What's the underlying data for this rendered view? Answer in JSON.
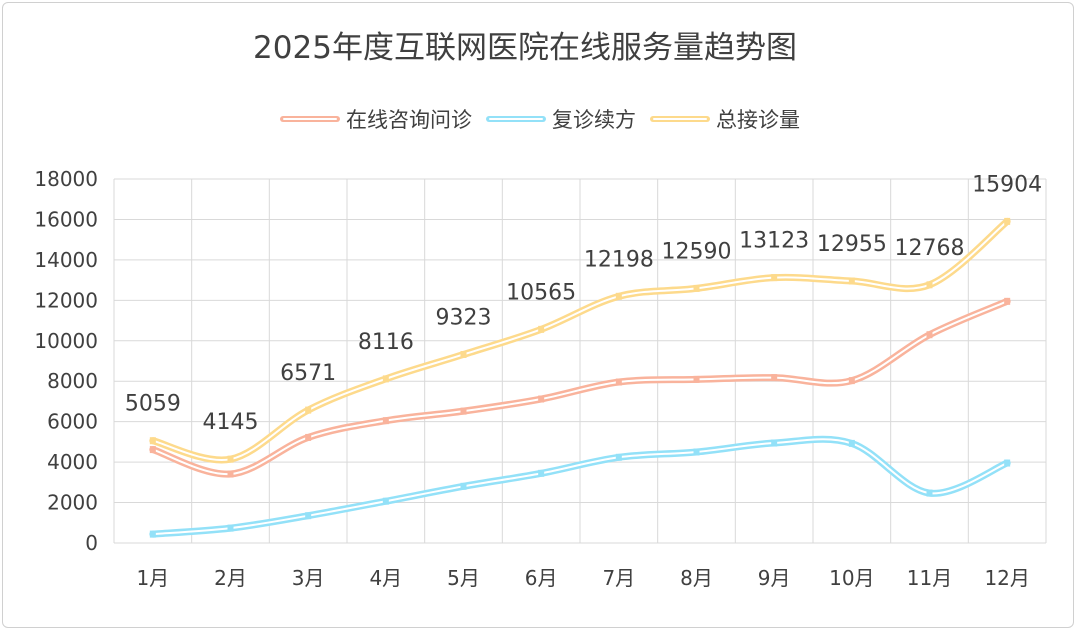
{
  "chart_data": {
    "type": "line",
    "title": "2025年度互联网医院在线服务量趋势图",
    "categories": [
      "1月",
      "2月",
      "3月",
      "4月",
      "5月",
      "6月",
      "7月",
      "8月",
      "9月",
      "10月",
      "11月",
      "12月"
    ],
    "ylim": [
      0,
      18000
    ],
    "yticks": [
      "0",
      "2000",
      "4000",
      "6000",
      "8000",
      "10000",
      "12000",
      "14000",
      "16000",
      "18000"
    ],
    "grid": true,
    "legend_position": "top",
    "series": [
      {
        "name": "在线咨询问诊",
        "color": "#F9B39C",
        "values": [
          4620,
          3410,
          5220,
          6050,
          6520,
          7120,
          7960,
          8090,
          8180,
          8030,
          10300,
          11950
        ],
        "labels": false
      },
      {
        "name": "复诊续方",
        "color": "#93E1F8",
        "values": [
          439,
          735,
          1351,
          2066,
          2803,
          3445,
          4238,
          4500,
          4943,
          4925,
          2468,
          3954
        ],
        "labels": false
      },
      {
        "name": "总接诊量",
        "color": "#FDDA8C",
        "values": [
          5059,
          4145,
          6571,
          8116,
          9323,
          10565,
          12198,
          12590,
          13123,
          12955,
          12768,
          15904
        ],
        "labels": true
      }
    ]
  }
}
